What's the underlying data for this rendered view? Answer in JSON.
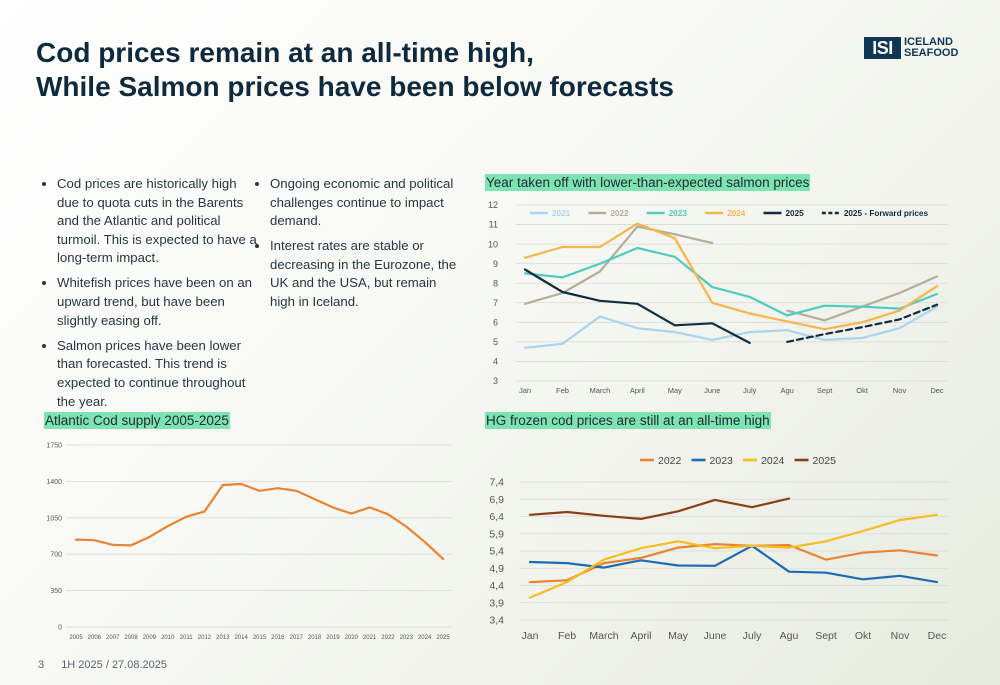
{
  "title": {
    "line1": "Cod prices remain at an all-time high,",
    "line2": "While Salmon prices have been below forecasts"
  },
  "logo": {
    "mark": "ISI",
    "line1": "ICELAND",
    "line2": "SEAFOOD"
  },
  "bullets_left": [
    "Cod prices are historically high due to quota cuts in the Barents and the Atlantic and political turmoil.  This is expected to have a long-term impact.",
    "Whitefish prices have been on an upward trend, but have been slightly easing off.",
    "Salmon prices have been lower than forecasted.  This trend is expected to continue throughout the year."
  ],
  "bullets_right": [
    "Ongoing economic and political challenges continue to impact demand.",
    " Interest rates are stable or decreasing in the Eurozone, the UK and the USA, but remain high in Iceland."
  ],
  "footer": {
    "page": "3",
    "label": "1H 2025 / 27.08.2025"
  },
  "chart_data": [
    {
      "id": "salmon",
      "type": "line",
      "title": "Year taken off with lower-than-expected salmon prices",
      "categories": [
        "Jan",
        "Feb",
        "March",
        "April",
        "May",
        "June",
        "July",
        "Agu",
        "Sept",
        "Okt",
        "Nov",
        "Dec"
      ],
      "ylim": [
        3,
        12
      ],
      "yticks": [
        3,
        4,
        5,
        6,
        7,
        8,
        9,
        10,
        11,
        12
      ],
      "grid": true,
      "legend": "top",
      "series": [
        {
          "name": "2021",
          "color": "#a8d4ee",
          "dash": false,
          "values": [
            4.7,
            4.9,
            6.3,
            5.7,
            5.5,
            5.1,
            5.5,
            5.6,
            5.1,
            5.2,
            5.7,
            6.8
          ]
        },
        {
          "name": "2022",
          "color": "#b3ad9b",
          "dash": false,
          "values": [
            6.95,
            7.5,
            8.6,
            10.9,
            10.5,
            10.05,
            null,
            6.6,
            6.1,
            6.8,
            7.5,
            8.35
          ]
        },
        {
          "name": "2023",
          "color": "#4cccc0",
          "dash": false,
          "values": [
            8.5,
            8.3,
            9.0,
            9.8,
            9.35,
            7.8,
            7.3,
            6.35,
            6.85,
            6.8,
            6.7,
            7.45
          ]
        },
        {
          "name": "2024",
          "color": "#f7b44a",
          "dash": false,
          "values": [
            9.3,
            9.85,
            9.85,
            11.05,
            10.3,
            7.0,
            6.45,
            6.05,
            5.65,
            6.0,
            6.6,
            7.85
          ]
        },
        {
          "name": "2025",
          "color": "#0f2d3d",
          "dash": false,
          "values": [
            8.7,
            7.55,
            7.1,
            6.95,
            5.85,
            5.95,
            4.95,
            null,
            null,
            null,
            null,
            null
          ]
        },
        {
          "name": "2025 - Forward prices",
          "color": "#0f2d3d",
          "dash": true,
          "values": [
            null,
            null,
            null,
            null,
            null,
            null,
            null,
            5.0,
            5.4,
            5.75,
            6.15,
            6.9
          ]
        }
      ]
    },
    {
      "id": "cod_supply",
      "type": "line",
      "title": "Atlantic Cod supply 2005-2025",
      "categories": [
        "2005",
        "2006",
        "2007",
        "2008",
        "2009",
        "2010",
        "2011",
        "2012",
        "2013",
        "2014",
        "2015",
        "2016",
        "2017",
        "2018",
        "2019",
        "2020",
        "2021",
        "2022",
        "2023",
        "2024",
        "2025"
      ],
      "ylim": [
        0,
        1750
      ],
      "yticks": [
        0,
        350,
        700,
        1050,
        1400,
        1750
      ],
      "grid": true,
      "series": [
        {
          "name": "",
          "color": "#e98332",
          "dash": false,
          "values": [
            840,
            835,
            790,
            785,
            865,
            970,
            1060,
            1110,
            1365,
            1375,
            1310,
            1335,
            1310,
            1230,
            1150,
            1090,
            1150,
            1085,
            965,
            820,
            655
          ]
        }
      ]
    },
    {
      "id": "hg_cod",
      "type": "line",
      "title": "HG frozen cod prices are still at an all-time high",
      "categories": [
        "Jan",
        "Feb",
        "March",
        "April",
        "May",
        "June",
        "July",
        "Agu",
        "Sept",
        "Okt",
        "Nov",
        "Dec"
      ],
      "ylim": [
        3.4,
        7.4
      ],
      "yticks": [
        "3,4",
        "3,9",
        "4,4",
        "4,9",
        "5,4",
        "5,9",
        "6,4",
        "6,9",
        "7,4"
      ],
      "grid": true,
      "legend": "top",
      "series": [
        {
          "name": "2022",
          "color": "#e98332",
          "dash": false,
          "values": [
            4.5,
            4.55,
            5.05,
            5.2,
            5.5,
            5.6,
            5.55,
            5.57,
            5.15,
            5.35,
            5.42,
            5.27
          ]
        },
        {
          "name": "2023",
          "color": "#1a6bb3",
          "dash": false,
          "values": [
            5.08,
            5.05,
            4.92,
            5.13,
            4.98,
            4.97,
            5.55,
            4.8,
            4.77,
            4.58,
            4.68,
            4.5
          ]
        },
        {
          "name": "2024",
          "color": "#f6bd1e",
          "dash": false,
          "values": [
            4.05,
            4.5,
            5.15,
            5.48,
            5.68,
            5.48,
            5.55,
            5.5,
            5.68,
            5.98,
            6.3,
            6.45
          ]
        },
        {
          "name": "2025",
          "color": "#8a3e16",
          "dash": false,
          "values": [
            6.45,
            6.53,
            6.42,
            6.33,
            6.55,
            6.88,
            6.67,
            6.92,
            null,
            null,
            null,
            null
          ]
        }
      ]
    }
  ]
}
